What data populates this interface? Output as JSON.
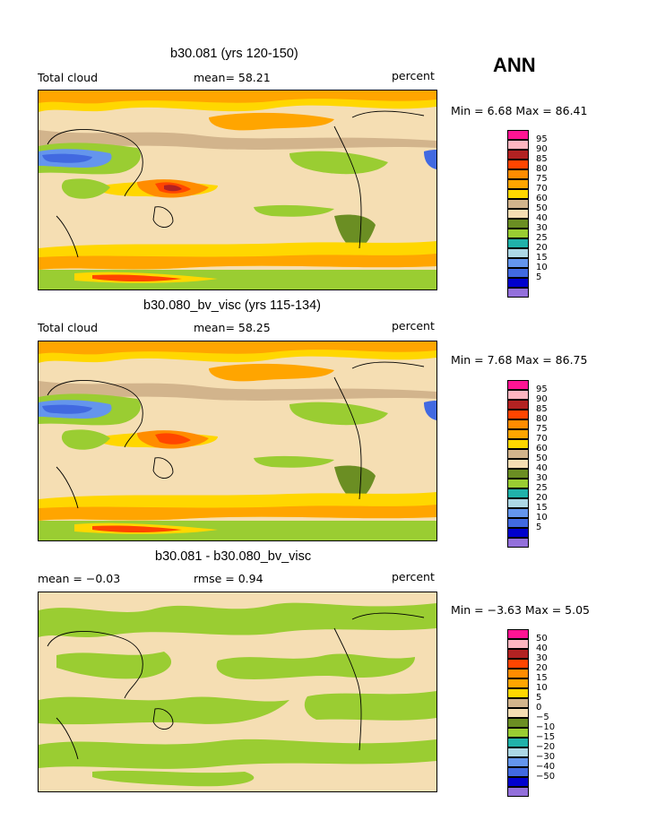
{
  "season": "ANN",
  "colors": {
    "abs_legend": [
      "#9370DB",
      "#0000CD",
      "#4169E1",
      "#6495ED",
      "#ADD8E6",
      "#20B2AA",
      "#9ACD32",
      "#6B8E23",
      "#F5DEB3",
      "#D2B48C",
      "#FFD700",
      "#FFA500",
      "#FF8C00",
      "#FF4500",
      "#B22222",
      "#FFB6C1",
      "#FF1493"
    ],
    "diff_legend": [
      "#9370DB",
      "#0000CD",
      "#4169E1",
      "#6495ED",
      "#ADD8E6",
      "#20B2AA",
      "#9ACD32",
      "#6B8E23",
      "#F5DEB3",
      "#D2B48C",
      "#FFD700",
      "#FFA500",
      "#FF8C00",
      "#FF4500",
      "#B22222",
      "#FFB6C1",
      "#FF1493"
    ]
  },
  "panels": [
    {
      "title": "b30.081 (yrs 120-150)",
      "left_label": "Total cloud",
      "center_label": "mean=  58.21",
      "units": "percent",
      "minmax": "Min =    6.68  Max =   86.41",
      "legend_labels": [
        "95",
        "90",
        "85",
        "80",
        "75",
        "70",
        "60",
        "50",
        "40",
        "30",
        "25",
        "20",
        "15",
        "10",
        "5"
      ],
      "legend_color_key": "abs_legend"
    },
    {
      "title": "b30.080_bv_visc (yrs 115-134)",
      "left_label": "Total cloud",
      "center_label": "mean=  58.25",
      "units": "percent",
      "minmax": "Min =    7.68  Max =   86.75",
      "legend_labels": [
        "95",
        "90",
        "85",
        "80",
        "75",
        "70",
        "60",
        "50",
        "40",
        "30",
        "25",
        "20",
        "15",
        "10",
        "5"
      ],
      "legend_color_key": "abs_legend"
    },
    {
      "title": "b30.081 - b30.080_bv_visc",
      "left_label": "mean =   −0.03",
      "center_label": "rmse =    0.94",
      "units": "percent",
      "minmax": "Min =  −3.63  Max =    5.05",
      "legend_labels": [
        "50",
        "40",
        "30",
        "20",
        "15",
        "10",
        "5",
        "0",
        "−5",
        "−10",
        "−15",
        "−20",
        "−30",
        "−40",
        "−50"
      ],
      "legend_color_key": "diff_legend"
    }
  ]
}
